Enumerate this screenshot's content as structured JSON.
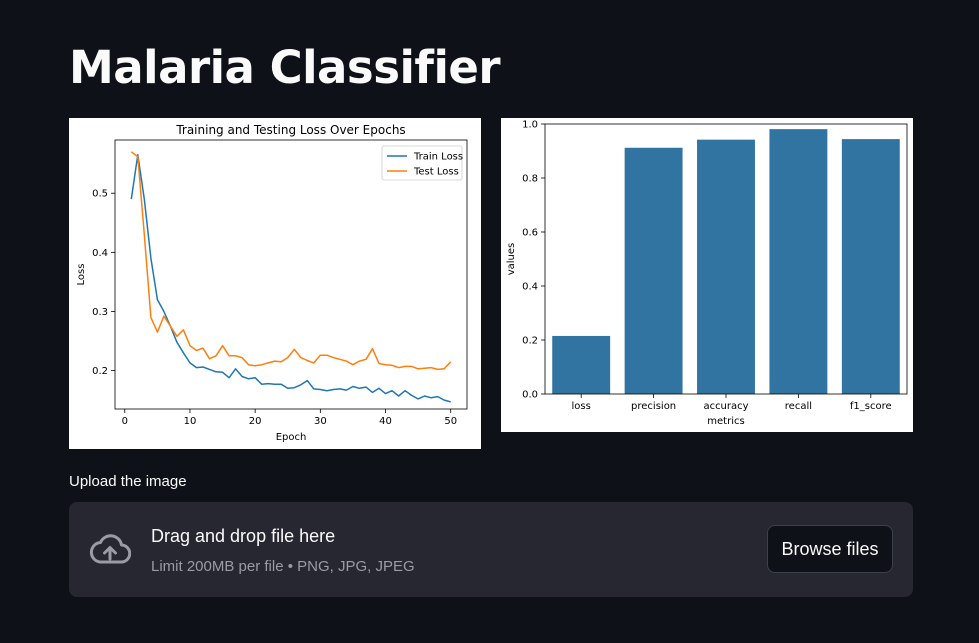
{
  "page": {
    "title": "Malaria Classifier"
  },
  "uploader": {
    "label": "Upload the image",
    "drop_title": "Drag and drop file here",
    "hint": "Limit 200MB per file • PNG, JPG, JPEG",
    "browse_label": "Browse files",
    "icon": "cloud-upload-icon"
  },
  "chart_data": [
    {
      "type": "line",
      "title": "Training and Testing Loss Over Epochs",
      "xlabel": "Epoch",
      "ylabel": "Loss",
      "xlim": [
        -1.5,
        52.5
      ],
      "ylim": [
        0.135,
        0.59
      ],
      "xticks": [
        0,
        10,
        20,
        30,
        40,
        50
      ],
      "yticks": [
        0.2,
        0.3,
        0.4,
        0.5
      ],
      "legend": "top-right",
      "x": [
        1,
        2,
        3,
        4,
        5,
        6,
        7,
        8,
        9,
        10,
        11,
        12,
        13,
        14,
        15,
        16,
        17,
        18,
        19,
        20,
        21,
        22,
        23,
        24,
        25,
        26,
        27,
        28,
        29,
        30,
        31,
        32,
        33,
        34,
        35,
        36,
        37,
        38,
        39,
        40,
        41,
        42,
        43,
        44,
        45,
        46,
        47,
        48,
        49,
        50
      ],
      "series": [
        {
          "name": "Train Loss",
          "color": "#1f77b4",
          "values": [
            0.49,
            0.565,
            0.49,
            0.39,
            0.32,
            0.3,
            0.275,
            0.248,
            0.23,
            0.213,
            0.205,
            0.206,
            0.202,
            0.198,
            0.197,
            0.188,
            0.203,
            0.19,
            0.186,
            0.188,
            0.177,
            0.178,
            0.177,
            0.177,
            0.17,
            0.171,
            0.176,
            0.183,
            0.169,
            0.168,
            0.166,
            0.168,
            0.169,
            0.167,
            0.173,
            0.17,
            0.172,
            0.163,
            0.17,
            0.161,
            0.166,
            0.157,
            0.166,
            0.158,
            0.152,
            0.157,
            0.154,
            0.156,
            0.15,
            0.147
          ]
        },
        {
          "name": "Test Loss",
          "color": "#ff7f0e",
          "values": [
            0.57,
            0.562,
            0.43,
            0.29,
            0.265,
            0.292,
            0.275,
            0.258,
            0.269,
            0.242,
            0.234,
            0.238,
            0.22,
            0.225,
            0.242,
            0.225,
            0.225,
            0.222,
            0.21,
            0.208,
            0.21,
            0.213,
            0.216,
            0.215,
            0.222,
            0.236,
            0.222,
            0.217,
            0.213,
            0.226,
            0.226,
            0.222,
            0.219,
            0.216,
            0.21,
            0.216,
            0.219,
            0.237,
            0.212,
            0.21,
            0.209,
            0.205,
            0.207,
            0.207,
            0.203,
            0.204,
            0.205,
            0.202,
            0.203,
            0.215
          ]
        }
      ]
    },
    {
      "type": "bar",
      "xlabel": "metrics",
      "ylabel": "values",
      "ylim": [
        0,
        1.0
      ],
      "yticks": [
        0.0,
        0.2,
        0.4,
        0.6,
        0.8,
        1.0
      ],
      "color": "#3274a1",
      "categories": [
        "loss",
        "precision",
        "accuracy",
        "recall",
        "f1_score"
      ],
      "values": [
        0.215,
        0.912,
        0.942,
        0.981,
        0.944
      ]
    }
  ]
}
